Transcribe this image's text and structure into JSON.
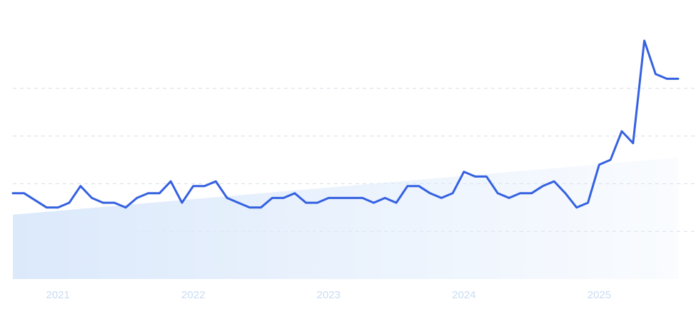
{
  "chart_data": {
    "type": "line",
    "title": "",
    "xlabel": "",
    "ylabel": "",
    "xlim": [
      "2020-09",
      "2025-08"
    ],
    "ylim": [
      0,
      100
    ],
    "grid": true,
    "legend": "none",
    "x_ticks": [
      {
        "label": "2021",
        "date": "2021-01"
      },
      {
        "label": "2022",
        "date": "2022-01"
      },
      {
        "label": "2023",
        "date": "2023-01"
      },
      {
        "label": "2024",
        "date": "2024-01"
      },
      {
        "label": "2025",
        "date": "2025-01"
      }
    ],
    "y_grid": [
      20,
      40,
      60,
      80
    ],
    "series": [
      {
        "color": "#3461e0",
        "x": [
          "2020-09",
          "2020-10",
          "2020-11",
          "2020-12",
          "2021-01",
          "2021-02",
          "2021-03",
          "2021-04",
          "2021-05",
          "2021-06",
          "2021-07",
          "2021-08",
          "2021-09",
          "2021-10",
          "2021-11",
          "2021-12",
          "2022-01",
          "2022-02",
          "2022-03",
          "2022-04",
          "2022-05",
          "2022-06",
          "2022-07",
          "2022-08",
          "2022-09",
          "2022-10",
          "2022-11",
          "2022-12",
          "2023-01",
          "2023-02",
          "2023-03",
          "2023-04",
          "2023-05",
          "2023-06",
          "2023-07",
          "2023-08",
          "2023-09",
          "2023-10",
          "2023-11",
          "2023-12",
          "2024-01",
          "2024-02",
          "2024-03",
          "2024-04",
          "2024-05",
          "2024-06",
          "2024-07",
          "2024-08",
          "2024-09",
          "2024-10",
          "2024-11",
          "2024-12",
          "2025-01",
          "2025-02",
          "2025-03",
          "2025-04",
          "2025-05",
          "2025-06",
          "2025-07",
          "2025-08"
        ],
        "values": [
          36,
          36,
          33,
          30,
          30,
          32,
          39,
          34,
          32,
          32,
          30,
          34,
          36,
          36,
          41,
          32,
          39,
          39,
          41,
          34,
          32,
          30,
          30,
          34,
          34,
          36,
          32,
          32,
          34,
          34,
          34,
          34,
          32,
          34,
          32,
          39,
          39,
          36,
          34,
          36,
          45,
          43,
          43,
          36,
          34,
          36,
          36,
          39,
          41,
          36,
          30,
          32,
          48,
          50,
          62,
          57,
          100,
          86,
          84,
          84
        ]
      }
    ],
    "trend_area": {
      "color": "#dbe9fb",
      "start_value": 27,
      "end_value": 51
    }
  }
}
